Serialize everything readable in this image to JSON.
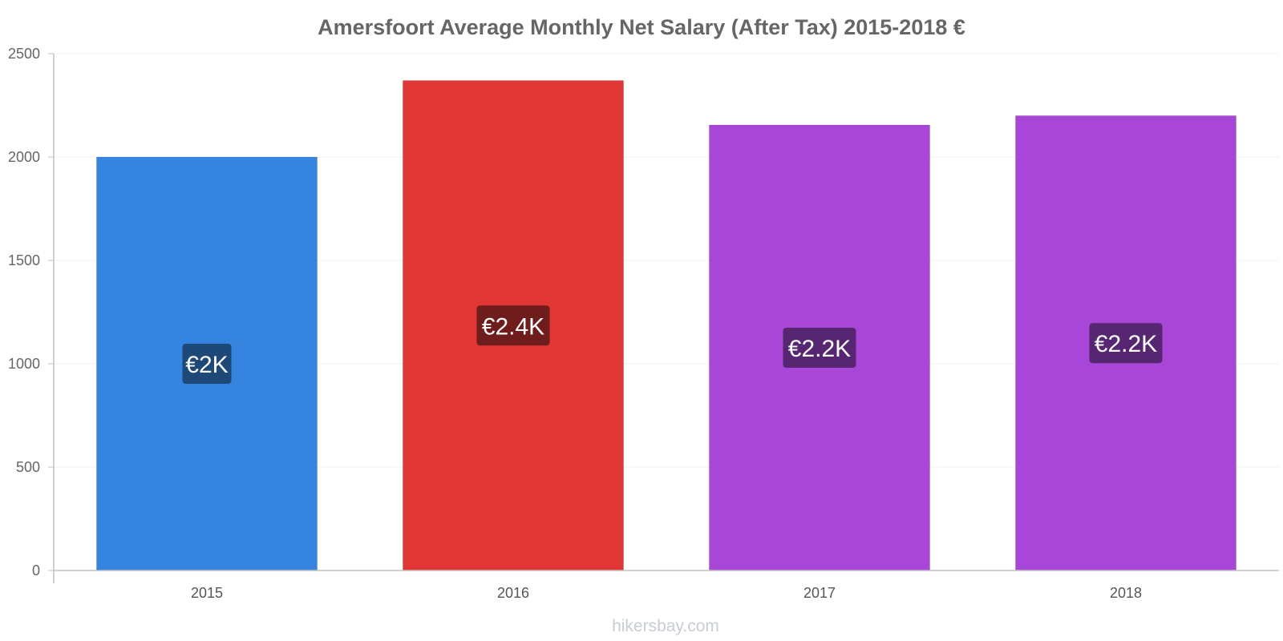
{
  "chart_data": {
    "type": "bar",
    "title": "Amersfoort Average Monthly Net Salary (After Tax) 2015-2018 €",
    "xlabel": "",
    "ylabel": "",
    "categories": [
      "2015",
      "2016",
      "2017",
      "2018"
    ],
    "values": [
      2000,
      2370,
      2155,
      2200
    ],
    "data_labels": [
      "€2K",
      "€2.4K",
      "€2.2K",
      "€2.2K"
    ],
    "colors": [
      "#3584e0",
      "#e23636",
      "#a846d8",
      "#a846d8"
    ],
    "label_bg_colors": [
      "#1d4877",
      "#6e1c1c",
      "#572672",
      "#572672"
    ],
    "ylim": [
      0,
      2500
    ],
    "yticks": [
      0,
      500,
      1000,
      1500,
      2000,
      2500
    ],
    "grid": true,
    "legend": "none"
  },
  "watermark": "hikersbay.com"
}
